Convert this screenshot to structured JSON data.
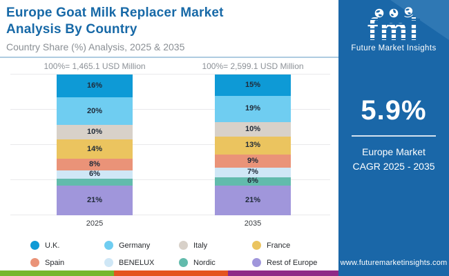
{
  "header": {
    "title_line1": "Europe Goat Milk Replacer Market",
    "title_line2": "Analysis By Country",
    "subtitle": "Country Share (%) Analysis, 2025 & 2035",
    "title_color": "#1769A7"
  },
  "chart_data": {
    "type": "bar",
    "subtype": "stacked-percent-columns",
    "categories": [
      "2025",
      "2035"
    ],
    "totals": [
      "100%= 1,465.1 USD Million",
      "100%= 2,599.1 USD Million"
    ],
    "series": [
      {
        "name": "U.K.",
        "color": "#0E9AD6",
        "values": [
          16,
          15
        ],
        "labels": [
          "16%",
          "15%"
        ]
      },
      {
        "name": "Germany",
        "color": "#6FCDF1",
        "values": [
          20,
          19
        ],
        "labels": [
          "20%",
          "19%"
        ]
      },
      {
        "name": "Italy",
        "color": "#D8D1C9",
        "values": [
          10,
          10
        ],
        "labels": [
          "10%",
          "10%"
        ]
      },
      {
        "name": "France",
        "color": "#EBC45F",
        "values": [
          14,
          13
        ],
        "labels": [
          "14%",
          "13%"
        ]
      },
      {
        "name": "Spain",
        "color": "#EA9378",
        "values": [
          8,
          9
        ],
        "labels": [
          "8%",
          "9%"
        ]
      },
      {
        "name": "BENELUX",
        "color": "#CFE7F6",
        "values": [
          6,
          7
        ],
        "labels": [
          "6%",
          "7%"
        ]
      },
      {
        "name": "Nordic",
        "color": "#62BBAC",
        "values": [
          5,
          6
        ],
        "labels": [
          "",
          "6%"
        ]
      },
      {
        "name": "Rest of Europe",
        "color": "#A096DB",
        "values": [
          21,
          21
        ],
        "labels": [
          "21%",
          "21%"
        ]
      }
    ],
    "ylim": [
      0,
      100
    ],
    "grid": true,
    "legend_position": "bottom"
  },
  "sidebar": {
    "logo_text": "fmi",
    "logo_caption": "Future Market Insights",
    "cagr_value": "5.9%",
    "cagr_label_line1": "Europe Market",
    "cagr_label_line2": "CAGR 2025 - 2035",
    "website": "www.futuremarketinsights.com",
    "bg_color": "#1A67A8",
    "corner_color": "#2F78B4"
  },
  "footer_strip_colors": [
    "#75B72B",
    "#E4541E",
    "#8E2A87"
  ]
}
